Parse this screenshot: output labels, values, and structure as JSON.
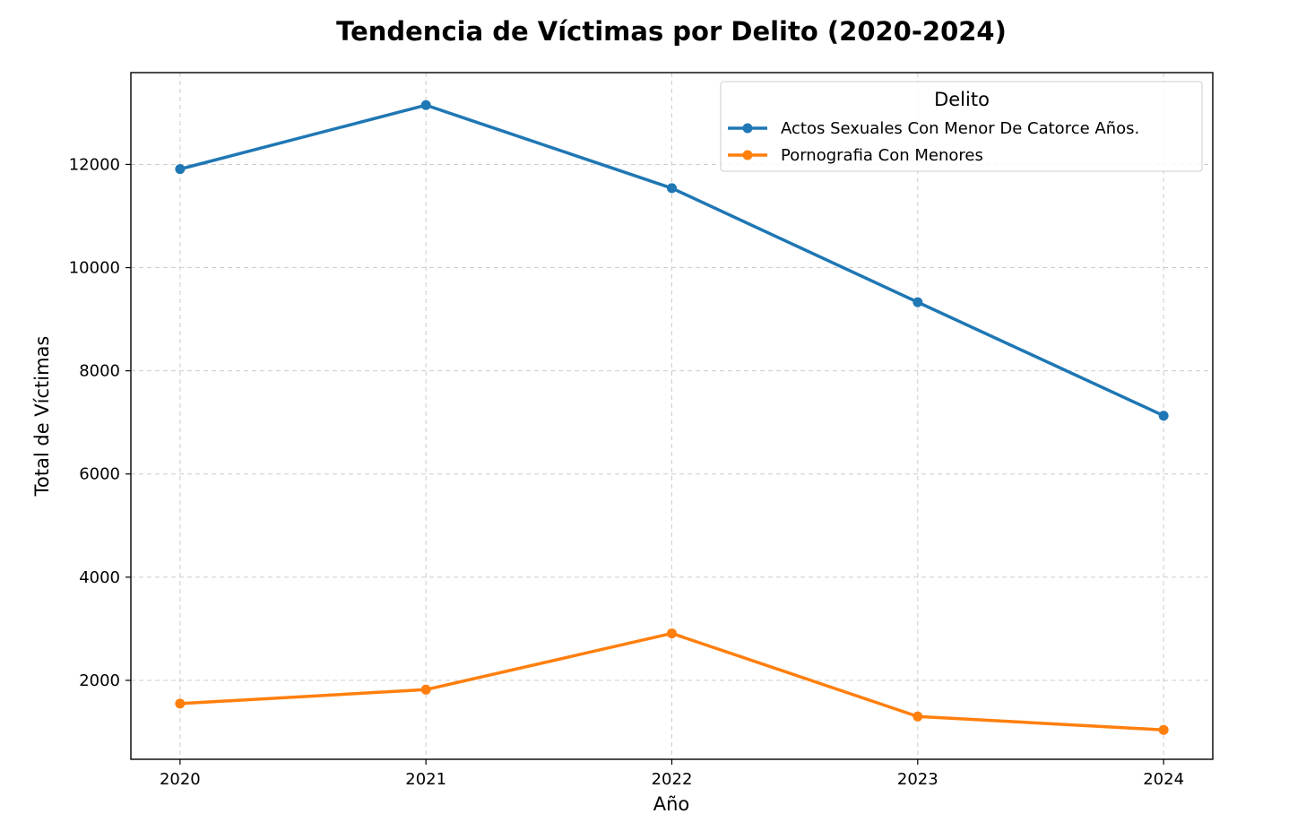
{
  "chart_data": {
    "type": "line",
    "title": "Tendencia de Víctimas por Delito (2020-2024)",
    "xlabel": "Año",
    "ylabel": "Total de Víctimas",
    "x": [
      2020,
      2021,
      2022,
      2023,
      2024
    ],
    "xticks": [
      "2020",
      "2021",
      "2022",
      "2023",
      "2024"
    ],
    "yticks": [
      2000,
      4000,
      6000,
      8000,
      10000,
      12000
    ],
    "xlim": [
      2019.8,
      2024.2
    ],
    "ylim": [
      470,
      13780
    ],
    "grid": true,
    "legend": {
      "title": "Delito",
      "placement": "top-right"
    },
    "series": [
      {
        "name": "Actos Sexuales Con Menor De Catorce Años.",
        "color": "#1f77b4",
        "values": [
          11910,
          13150,
          11540,
          9330,
          7130
        ]
      },
      {
        "name": "Pornografia Con Menores",
        "color": "#ff7f0e",
        "values": [
          1550,
          1820,
          2910,
          1300,
          1040
        ]
      }
    ]
  }
}
